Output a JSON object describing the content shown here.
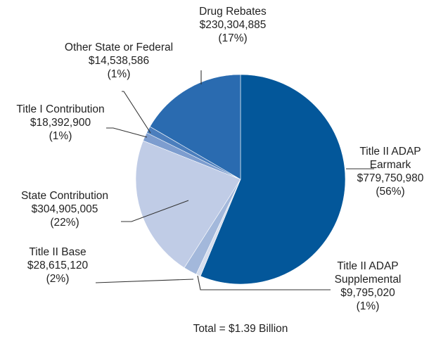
{
  "chart_data": {
    "type": "pie",
    "title": "",
    "footnote": "Total = $1.39 Billion",
    "slices": [
      {
        "key": "t2-earmark",
        "label_lines": [
          "Title II ADAP",
          "Earmark",
          "$779,750,980",
          "(56%)"
        ],
        "value": 779750980,
        "percent": "56%",
        "color": "#03579a"
      },
      {
        "key": "t2-supplemental",
        "label_lines": [
          "Title II ADAP",
          "Supplemental",
          "$9,795,020",
          "(1%)"
        ],
        "value": 9795020,
        "percent": "1%",
        "color": "#d6deee"
      },
      {
        "key": "t2-base",
        "label_lines": [
          "Title II Base",
          "$28,615,120",
          "(2%)"
        ],
        "value": 28615120,
        "percent": "2%",
        "color": "#a3b8db"
      },
      {
        "key": "state",
        "label_lines": [
          "State Contribution",
          "$304,905,005",
          "(22%)"
        ],
        "value": 304905005,
        "percent": "22%",
        "color": "#c0cce6"
      },
      {
        "key": "t1",
        "label_lines": [
          "Title I Contribution",
          "$18,392,900",
          "(1%)"
        ],
        "value": 18392900,
        "percent": "1%",
        "color": "#7d9dcf"
      },
      {
        "key": "other",
        "label_lines": [
          "Other State or Federal",
          "$14,538,586",
          "(1%)"
        ],
        "value": 14538586,
        "percent": "1%",
        "color": "#4b7ebd"
      },
      {
        "key": "drug-rebates",
        "label_lines": [
          "Drug Rebates",
          "$230,304,885",
          "(17%)"
        ],
        "value": 230304885,
        "percent": "17%",
        "color": "#2a6bb0"
      }
    ]
  }
}
